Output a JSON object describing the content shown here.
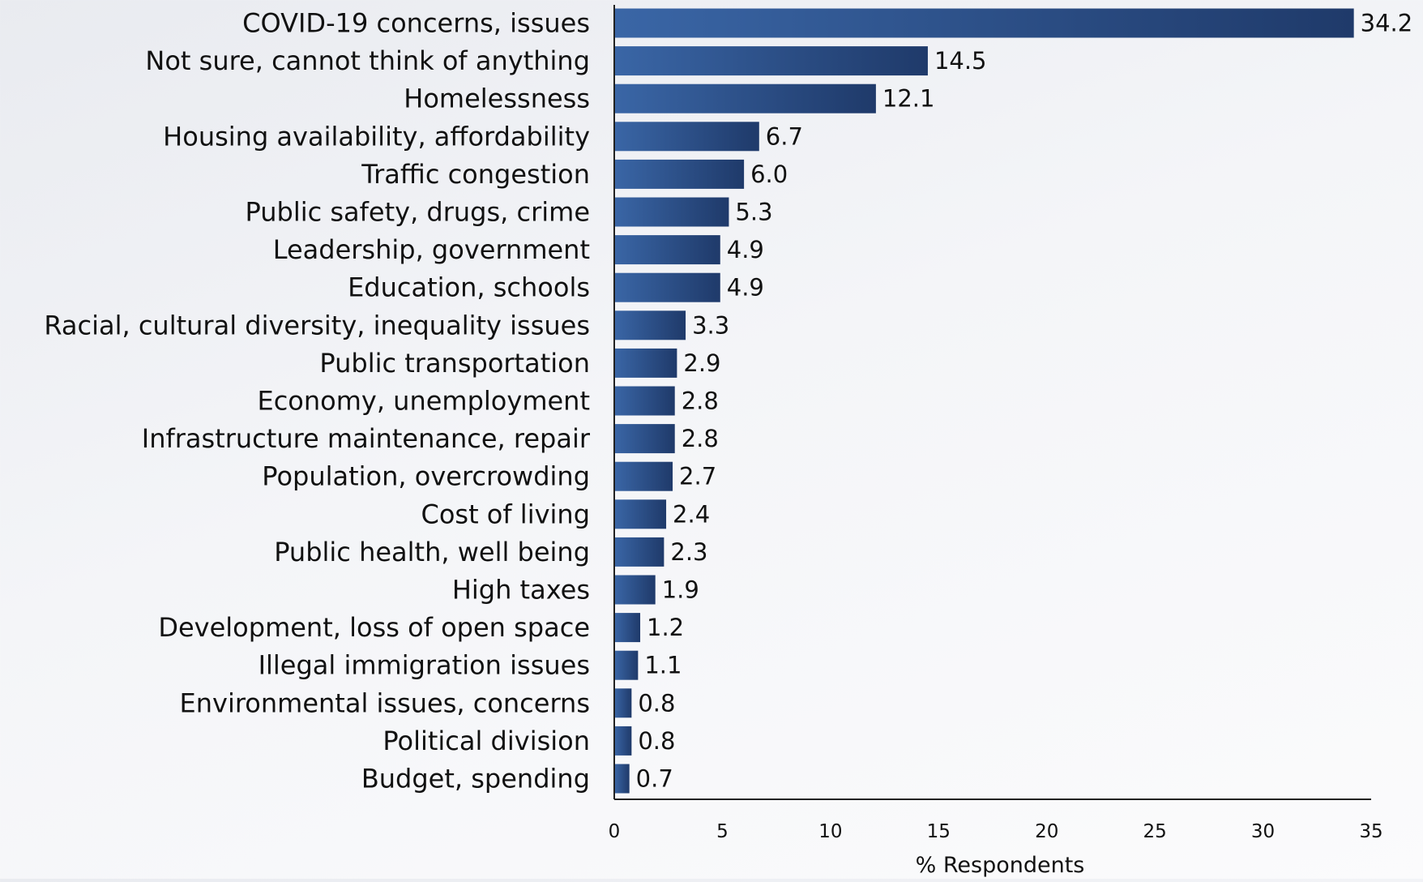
{
  "chart_data": {
    "type": "bar",
    "orientation": "horizontal",
    "categories": [
      "COVID-19 concerns, issues",
      "Not sure, cannot think of anything",
      "Homelessness",
      "Housing availability, affordability",
      "Traffic congestion",
      "Public safety, drugs, crime",
      "Leadership, government",
      "Education, schools",
      "Racial, cultural diversity, inequality issues",
      "Public transportation",
      "Economy, unemployment",
      "Infrastructure maintenance, repair",
      "Population, overcrowding",
      "Cost of living",
      "Public health, well being",
      "High taxes",
      "Development, loss of open space",
      "Illegal immigration issues",
      "Environmental issues, concerns",
      "Political division",
      "Budget, spending"
    ],
    "values": [
      34.2,
      14.5,
      12.1,
      6.7,
      6.0,
      5.3,
      4.9,
      4.9,
      3.3,
      2.9,
      2.8,
      2.8,
      2.7,
      2.4,
      2.3,
      1.9,
      1.2,
      1.1,
      0.8,
      0.8,
      0.7
    ],
    "value_labels": [
      "34.2",
      "14.5",
      "12.1",
      "6.7",
      "6.0",
      "5.3",
      "4.9",
      "4.9",
      "3.3",
      "2.9",
      "2.8",
      "2.8",
      "2.7",
      "2.4",
      "2.3",
      "1.9",
      "1.2",
      "1.1",
      "0.8",
      "0.8",
      "0.7"
    ],
    "xlabel": "% Respondents",
    "ylabel": "",
    "xlim": [
      0,
      35
    ],
    "xticks": [
      0,
      5,
      10,
      15,
      20,
      25,
      30,
      35
    ],
    "grid": false,
    "legend": "none",
    "colors": {
      "bar_light": "#3a66a6",
      "bar_dark": "#1f3a6a",
      "axis": "#222222",
      "text": "#111111"
    }
  }
}
